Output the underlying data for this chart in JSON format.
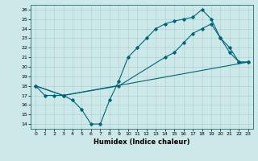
{
  "xlabel": "Humidex (Indice chaleur)",
  "bg_color": "#cce8e8",
  "line_color": "#006677",
  "grid_color": "#aacccc",
  "xlim": [
    -0.5,
    23.5
  ],
  "ylim": [
    13.5,
    26.5
  ],
  "xticks": [
    0,
    1,
    2,
    3,
    4,
    5,
    6,
    7,
    8,
    9,
    10,
    11,
    12,
    13,
    14,
    15,
    16,
    17,
    18,
    19,
    20,
    21,
    22,
    23
  ],
  "yticks": [
    14,
    15,
    16,
    17,
    18,
    19,
    20,
    21,
    22,
    23,
    24,
    25,
    26
  ],
  "line1_x": [
    0,
    1,
    2,
    3,
    4,
    5,
    6,
    7,
    8,
    9,
    10,
    11,
    12,
    13,
    14,
    15,
    16,
    17,
    18,
    19,
    20,
    21,
    22,
    23
  ],
  "line1_y": [
    18,
    17,
    17,
    17,
    16.5,
    15.5,
    14,
    14,
    16.5,
    18.5,
    21,
    22,
    23,
    24,
    24.5,
    24.8,
    25,
    25.2,
    26,
    25,
    23,
    21.5,
    20.5,
    20.5
  ],
  "line2_x": [
    0,
    3,
    23
  ],
  "line2_y": [
    18,
    17,
    20.5
  ],
  "line3_x": [
    0,
    3,
    9,
    14,
    15,
    16,
    17,
    18,
    19,
    20,
    21,
    22,
    23
  ],
  "line3_y": [
    18,
    17,
    18,
    21,
    21.5,
    22.5,
    23.5,
    24,
    24.5,
    23,
    22,
    20.5,
    20.5
  ],
  "xlabel_fontsize": 6,
  "tick_fontsize": 4.5
}
